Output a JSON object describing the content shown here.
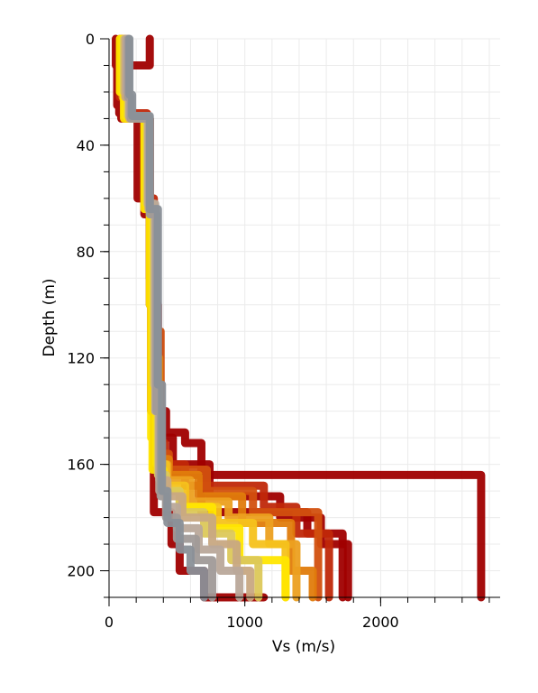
{
  "chart_data": {
    "type": "line",
    "title": "",
    "xlabel": "Vs (m/s)",
    "ylabel": "Depth (m)",
    "xlim": [
      0,
      2880
    ],
    "ylim": [
      210,
      0
    ],
    "y_inverted": true,
    "x_ticks": [
      0,
      1000,
      2000
    ],
    "x_minor_step": 200,
    "y_ticks": [
      0,
      40,
      80,
      120,
      160,
      200
    ],
    "y_minor_step": 10,
    "grid": true,
    "legend": "none",
    "colors": [
      "#a00000",
      "#c0280a",
      "#d2500f",
      "#e07c0c",
      "#eca020",
      "#f5c21c",
      "#ffe600",
      "#dcc85a",
      "#c8a882",
      "#b9a89a",
      "#a09a98",
      "#8a9098"
    ],
    "series": [
      {
        "color": "#a00000",
        "points": [
          [
            50,
            0
          ],
          [
            60,
            10
          ],
          [
            60,
            18
          ],
          [
            75,
            25
          ],
          [
            90,
            28
          ],
          [
            210,
            30
          ],
          [
            260,
            60
          ],
          [
            300,
            66
          ],
          [
            310,
            100
          ],
          [
            330,
            140
          ],
          [
            330,
            172
          ],
          [
            460,
            178
          ],
          [
            520,
            190
          ],
          [
            700,
            200
          ],
          [
            1140,
            210
          ]
        ]
      },
      {
        "color": "#a00000",
        "points": [
          [
            100,
            0
          ],
          [
            120,
            20
          ],
          [
            150,
            26
          ],
          [
            280,
            30
          ],
          [
            300,
            62
          ],
          [
            330,
            90
          ],
          [
            360,
            150
          ],
          [
            420,
            158
          ],
          [
            560,
            163
          ],
          [
            2740,
            164
          ],
          [
            2740,
            210
          ]
        ]
      },
      {
        "color": "#a00000",
        "points": [
          [
            120,
            0
          ],
          [
            150,
            24
          ],
          [
            300,
            30
          ],
          [
            320,
            62
          ],
          [
            360,
            100
          ],
          [
            420,
            140
          ],
          [
            560,
            148
          ],
          [
            680,
            152
          ],
          [
            1460,
            178
          ],
          [
            1720,
            186
          ],
          [
            1720,
            210
          ]
        ]
      },
      {
        "color": "#a00000",
        "points": [
          [
            300,
            0
          ],
          [
            140,
            10
          ],
          [
            160,
            28
          ],
          [
            300,
            30
          ],
          [
            330,
            64
          ],
          [
            370,
            110
          ],
          [
            470,
            150
          ],
          [
            740,
            160
          ],
          [
            1260,
            172
          ],
          [
            1560,
            180
          ],
          [
            1760,
            190
          ],
          [
            1760,
            210
          ]
        ]
      },
      {
        "color": "#c0280a",
        "points": [
          [
            80,
            0
          ],
          [
            110,
            22
          ],
          [
            280,
            28
          ],
          [
            330,
            60
          ],
          [
            360,
            120
          ],
          [
            410,
            152
          ],
          [
            560,
            160
          ],
          [
            1140,
            168
          ],
          [
            1380,
            176
          ],
          [
            1620,
            186
          ],
          [
            1620,
            210
          ]
        ]
      },
      {
        "color": "#d2500f",
        "points": [
          [
            140,
            0
          ],
          [
            130,
            18
          ],
          [
            300,
            30
          ],
          [
            340,
            64
          ],
          [
            380,
            110
          ],
          [
            440,
            156
          ],
          [
            720,
            162
          ],
          [
            1060,
            170
          ],
          [
            1540,
            178
          ],
          [
            1540,
            210
          ]
        ]
      },
      {
        "color": "#e07c0c",
        "points": [
          [
            120,
            0
          ],
          [
            140,
            20
          ],
          [
            290,
            29
          ],
          [
            330,
            62
          ],
          [
            370,
            120
          ],
          [
            440,
            158
          ],
          [
            660,
            164
          ],
          [
            980,
            172
          ],
          [
            1340,
            182
          ],
          [
            1500,
            200
          ],
          [
            1500,
            210
          ]
        ]
      },
      {
        "color": "#eca020",
        "points": [
          [
            100,
            0
          ],
          [
            140,
            22
          ],
          [
            280,
            30
          ],
          [
            330,
            64
          ],
          [
            360,
            130
          ],
          [
            430,
            160
          ],
          [
            600,
            166
          ],
          [
            880,
            174
          ],
          [
            1180,
            180
          ],
          [
            1380,
            190
          ],
          [
            1380,
            210
          ]
        ]
      },
      {
        "color": "#f5c21c",
        "points": [
          [
            100,
            0
          ],
          [
            120,
            20
          ],
          [
            270,
            29
          ],
          [
            320,
            62
          ],
          [
            350,
            120
          ],
          [
            420,
            160
          ],
          [
            560,
            168
          ],
          [
            800,
            176
          ],
          [
            1060,
            182
          ],
          [
            1300,
            190
          ],
          [
            1300,
            210
          ]
        ]
      },
      {
        "color": "#ffe600",
        "points": [
          [
            80,
            0
          ],
          [
            110,
            20
          ],
          [
            260,
            30
          ],
          [
            300,
            64
          ],
          [
            310,
            100
          ],
          [
            320,
            150
          ],
          [
            400,
            162
          ],
          [
            520,
            170
          ],
          [
            760,
            176
          ],
          [
            960,
            184
          ],
          [
            1300,
            196
          ],
          [
            1300,
            210
          ]
        ]
      },
      {
        "color": "#dcc85a",
        "points": [
          [
            110,
            0
          ],
          [
            140,
            20
          ],
          [
            280,
            29
          ],
          [
            330,
            62
          ],
          [
            360,
            130
          ],
          [
            420,
            164
          ],
          [
            520,
            170
          ],
          [
            700,
            178
          ],
          [
            900,
            186
          ],
          [
            1100,
            196
          ],
          [
            1100,
            210
          ]
        ]
      },
      {
        "color": "#c8a882",
        "points": [
          [
            120,
            0
          ],
          [
            150,
            22
          ],
          [
            290,
            30
          ],
          [
            340,
            64
          ],
          [
            370,
            130
          ],
          [
            430,
            166
          ],
          [
            540,
            172
          ],
          [
            760,
            180
          ],
          [
            940,
            190
          ],
          [
            1040,
            200
          ],
          [
            1040,
            210
          ]
        ]
      },
      {
        "color": "#b9a89a",
        "points": [
          [
            130,
            0
          ],
          [
            150,
            20
          ],
          [
            290,
            29
          ],
          [
            340,
            62
          ],
          [
            370,
            140
          ],
          [
            420,
            170
          ],
          [
            500,
            176
          ],
          [
            660,
            184
          ],
          [
            820,
            192
          ],
          [
            960,
            200
          ],
          [
            960,
            210
          ]
        ]
      },
      {
        "color": "#a09a98",
        "points": [
          [
            140,
            0
          ],
          [
            160,
            22
          ],
          [
            300,
            30
          ],
          [
            350,
            66
          ],
          [
            380,
            140
          ],
          [
            420,
            172
          ],
          [
            500,
            180
          ],
          [
            640,
            188
          ],
          [
            760,
            196
          ],
          [
            760,
            210
          ]
        ]
      },
      {
        "color": "#8a9098",
        "points": [
          [
            150,
            0
          ],
          [
            170,
            21
          ],
          [
            300,
            29
          ],
          [
            360,
            64
          ],
          [
            390,
            130
          ],
          [
            430,
            170
          ],
          [
            520,
            182
          ],
          [
            600,
            192
          ],
          [
            700,
            200
          ],
          [
            700,
            210
          ]
        ]
      }
    ]
  }
}
